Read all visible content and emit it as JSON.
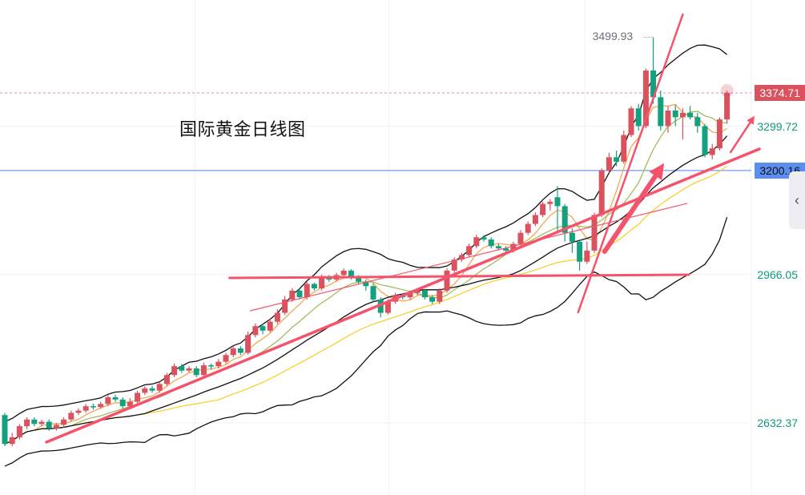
{
  "chart_data": {
    "type": "candlestick",
    "title": "国际黄金日线图",
    "ylim": [
      2470.2,
      3583.7
    ],
    "price_labels": [
      {
        "value": "3374.71",
        "style": "current"
      },
      {
        "value": "3299.72",
        "style": "plain"
      },
      {
        "value": "3200.16",
        "style": "blue"
      },
      {
        "value": "2966.05",
        "style": "plain"
      },
      {
        "value": "2632.37",
        "style": "plain"
      }
    ],
    "gridlines": [
      3299.72,
      2966.05,
      2632.37
    ],
    "vertical_grid_index": [
      25.8,
      52.1,
      78.7,
      101.3
    ],
    "peak_label": "3499.93",
    "current_price": 3374.71,
    "marked_level": 3200.16,
    "candles_ohlc": [
      [
        2650,
        2655,
        2580,
        2585
      ],
      [
        2585,
        2610,
        2580,
        2600
      ],
      [
        2600,
        2630,
        2595,
        2625
      ],
      [
        2625,
        2645,
        2618,
        2640
      ],
      [
        2640,
        2645,
        2625,
        2630
      ],
      [
        2630,
        2640,
        2625,
        2635
      ],
      [
        2635,
        2640,
        2615,
        2620
      ],
      [
        2620,
        2632,
        2615,
        2628
      ],
      [
        2628,
        2645,
        2622,
        2640
      ],
      [
        2640,
        2660,
        2636,
        2655
      ],
      [
        2655,
        2665,
        2650,
        2660
      ],
      [
        2660,
        2675,
        2655,
        2670
      ],
      [
        2670,
        2676,
        2662,
        2668
      ],
      [
        2668,
        2680,
        2664,
        2675
      ],
      [
        2675,
        2695,
        2670,
        2690
      ],
      [
        2690,
        2696,
        2680,
        2685
      ],
      [
        2685,
        2690,
        2665,
        2670
      ],
      [
        2670,
        2688,
        2666,
        2680
      ],
      [
        2680,
        2705,
        2676,
        2700
      ],
      [
        2700,
        2715,
        2695,
        2710
      ],
      [
        2710,
        2716,
        2700,
        2705
      ],
      [
        2705,
        2725,
        2700,
        2720
      ],
      [
        2720,
        2745,
        2716,
        2740
      ],
      [
        2740,
        2766,
        2735,
        2760
      ],
      [
        2760,
        2765,
        2745,
        2750
      ],
      [
        2750,
        2760,
        2746,
        2755
      ],
      [
        2755,
        2760,
        2735,
        2740
      ],
      [
        2740,
        2768,
        2736,
        2762
      ],
      [
        2762,
        2766,
        2752,
        2760
      ],
      [
        2760,
        2776,
        2755,
        2770
      ],
      [
        2770,
        2790,
        2765,
        2785
      ],
      [
        2785,
        2806,
        2780,
        2800
      ],
      [
        2800,
        2805,
        2785,
        2790
      ],
      [
        2790,
        2838,
        2786,
        2830
      ],
      [
        2830,
        2856,
        2825,
        2850
      ],
      [
        2850,
        2855,
        2832,
        2840
      ],
      [
        2840,
        2866,
        2836,
        2860
      ],
      [
        2860,
        2888,
        2855,
        2880
      ],
      [
        2880,
        2918,
        2875,
        2910
      ],
      [
        2910,
        2936,
        2905,
        2930
      ],
      [
        2930,
        2934,
        2910,
        2915
      ],
      [
        2915,
        2950,
        2910,
        2945
      ],
      [
        2945,
        2948,
        2930,
        2935
      ],
      [
        2935,
        2966,
        2930,
        2960
      ],
      [
        2960,
        2965,
        2950,
        2955
      ],
      [
        2955,
        2970,
        2950,
        2965
      ],
      [
        2965,
        2980,
        2960,
        2975
      ],
      [
        2975,
        2978,
        2955,
        2960
      ],
      [
        2960,
        2965,
        2945,
        2950
      ],
      [
        2950,
        2955,
        2930,
        2940
      ],
      [
        2940,
        2945,
        2905,
        2910
      ],
      [
        2910,
        2915,
        2870,
        2880
      ],
      [
        2880,
        2910,
        2876,
        2905
      ],
      [
        2905,
        2925,
        2900,
        2920
      ],
      [
        2920,
        2924,
        2910,
        2915
      ],
      [
        2915,
        2930,
        2910,
        2925
      ],
      [
        2925,
        2935,
        2920,
        2930
      ],
      [
        2930,
        2934,
        2910,
        2915
      ],
      [
        2915,
        2920,
        2900,
        2905
      ],
      [
        2905,
        2935,
        2900,
        2930
      ],
      [
        2930,
        2980,
        2925,
        2975
      ],
      [
        2975,
        3005,
        2970,
        3000
      ],
      [
        3000,
        3015,
        2995,
        3010
      ],
      [
        3010,
        3036,
        3005,
        3030
      ],
      [
        3030,
        3056,
        3025,
        3050
      ],
      [
        3050,
        3055,
        3040,
        3045
      ],
      [
        3045,
        3050,
        3025,
        3030
      ],
      [
        3030,
        3036,
        3020,
        3025
      ],
      [
        3025,
        3030,
        3015,
        3020
      ],
      [
        3020,
        3040,
        3015,
        3035
      ],
      [
        3035,
        3066,
        3030,
        3060
      ],
      [
        3060,
        3086,
        3055,
        3080
      ],
      [
        3080,
        3106,
        3075,
        3100
      ],
      [
        3100,
        3130,
        3095,
        3125
      ],
      [
        3125,
        3136,
        3110,
        3130
      ],
      [
        3140,
        3165,
        3065,
        3120
      ],
      [
        3120,
        3125,
        3040,
        3060
      ],
      [
        3060,
        3070,
        3015,
        3040
      ],
      [
        3040,
        3045,
        2975,
        2995
      ],
      [
        2995,
        3040,
        2990,
        3020
      ],
      [
        3020,
        3105,
        3015,
        3100
      ],
      [
        3100,
        3205,
        3095,
        3200
      ],
      [
        3200,
        3240,
        3195,
        3230
      ],
      [
        3230,
        3245,
        3210,
        3220
      ],
      [
        3220,
        3290,
        3215,
        3280
      ],
      [
        3280,
        3345,
        3275,
        3340
      ],
      [
        3340,
        3350,
        3290,
        3300
      ],
      [
        3300,
        3430,
        3295,
        3425
      ],
      [
        3425,
        3499.93,
        3350,
        3365
      ],
      [
        3365,
        3380,
        3290,
        3300
      ],
      [
        3300,
        3345,
        3285,
        3335
      ],
      [
        3335,
        3348,
        3300,
        3320
      ],
      [
        3320,
        3340,
        3270,
        3330
      ],
      [
        3330,
        3345,
        3315,
        3320
      ],
      [
        3320,
        3330,
        3285,
        3300
      ],
      [
        3300,
        3305,
        3230,
        3235
      ],
      [
        3235,
        3260,
        3225,
        3250
      ],
      [
        3250,
        3320,
        3245,
        3315
      ],
      [
        3315,
        3380,
        3305,
        3375
      ]
    ],
    "indicators": [
      {
        "name": "MA5",
        "period": 5,
        "color": "#f5a142"
      },
      {
        "name": "MA10",
        "period": 10,
        "color": "#9cb84e"
      },
      {
        "name": "MA30",
        "period": 30,
        "color": "#f5cf1f"
      },
      {
        "name": "BOLL",
        "period": 20,
        "mult": 2,
        "color": "#111111"
      }
    ],
    "trendlines": [
      {
        "name": "horizontal-resistance",
        "from": [
          30.5,
          2958.5
        ],
        "to": [
          92.8,
          2965.7
        ],
        "width": 3,
        "arrow": false
      },
      {
        "name": "main-uptrend",
        "from": [
          5.65,
          2589.1
        ],
        "to": [
          102.4,
          3248.6
        ],
        "width": 3.5,
        "arrow": false
      },
      {
        "name": "thin-uptrend",
        "from": [
          33.3,
          2884.6
        ],
        "to": [
          92.6,
          3126.1
        ],
        "width": 1.2,
        "arrow": false
      },
      {
        "name": "steep-uptrend",
        "from": [
          77.8,
          2881
        ],
        "to": [
          92,
          3551.3
        ],
        "width": 2.5,
        "arrow": false
      },
      {
        "name": "breakout-arrow",
        "from": [
          81.4,
          3018
        ],
        "to": [
          89,
          3205
        ],
        "width": 6,
        "arrow": true
      },
      {
        "name": "target-arrow",
        "from": [
          98.5,
          3241.4
        ],
        "to": [
          101.5,
          3317
        ],
        "width": 2.5,
        "arrow": true
      }
    ],
    "colors": {
      "up": "#d9525e",
      "down": "#13a07f",
      "trend": "#f5536b",
      "blue_line": "#4f7ff0",
      "grid": "#f0f1f4"
    }
  },
  "ui": {
    "collapse_icon": "‹"
  }
}
